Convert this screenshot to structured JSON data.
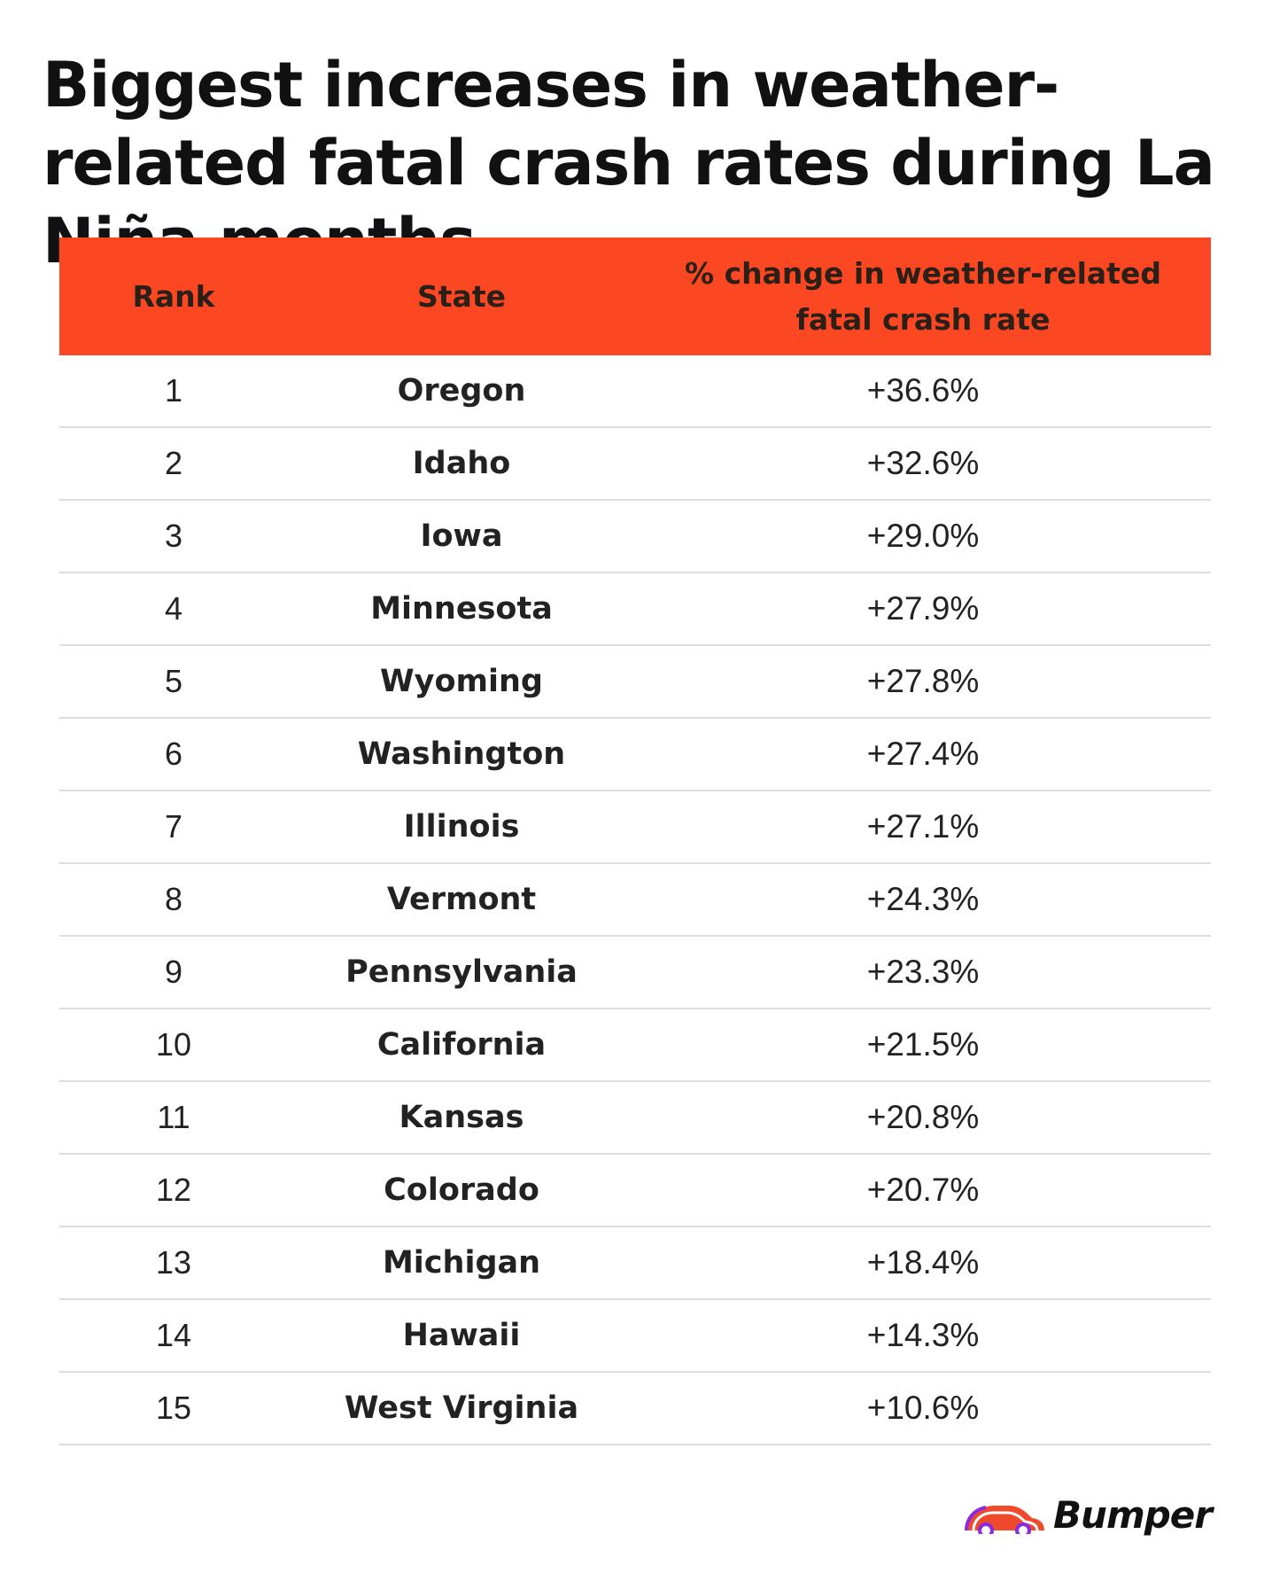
{
  "title": "Biggest increases in weather-related fatal crash rates during La Niña months",
  "colors": {
    "header_bg": "#fb4722",
    "row_divider": "#dedede",
    "logo_red": "#f04a2c",
    "logo_purple": "#8a2be2"
  },
  "chart_data": {
    "type": "table",
    "title": "Biggest increases in weather-related fatal crash rates during La Niña months",
    "columns": [
      "Rank",
      "State",
      "% change in weather-related fatal crash rate"
    ],
    "rows": [
      {
        "rank": "1",
        "state": "Oregon",
        "change": "+36.6%"
      },
      {
        "rank": "2",
        "state": "Idaho",
        "change": "+32.6%"
      },
      {
        "rank": "3",
        "state": "Iowa",
        "change": "+29.0%"
      },
      {
        "rank": "4",
        "state": "Minnesota",
        "change": "+27.9%"
      },
      {
        "rank": "5",
        "state": "Wyoming",
        "change": "+27.8%"
      },
      {
        "rank": "6",
        "state": "Washington",
        "change": "+27.4%"
      },
      {
        "rank": "7",
        "state": "Illinois",
        "change": "+27.1%"
      },
      {
        "rank": "8",
        "state": "Vermont",
        "change": "+24.3%"
      },
      {
        "rank": "9",
        "state": "Pennsylvania",
        "change": "+23.3%"
      },
      {
        "rank": "10",
        "state": "California",
        "change": "+21.5%"
      },
      {
        "rank": "11",
        "state": "Kansas",
        "change": "+20.8%"
      },
      {
        "rank": "12",
        "state": "Colorado",
        "change": "+20.7%"
      },
      {
        "rank": "13",
        "state": "Michigan",
        "change": "+18.4%"
      },
      {
        "rank": "14",
        "state": "Hawaii",
        "change": "+14.3%"
      },
      {
        "rank": "15",
        "state": "West Virginia",
        "change": "+10.6%"
      }
    ]
  },
  "logo": {
    "text": "Bumper",
    "icon": "car-icon"
  }
}
